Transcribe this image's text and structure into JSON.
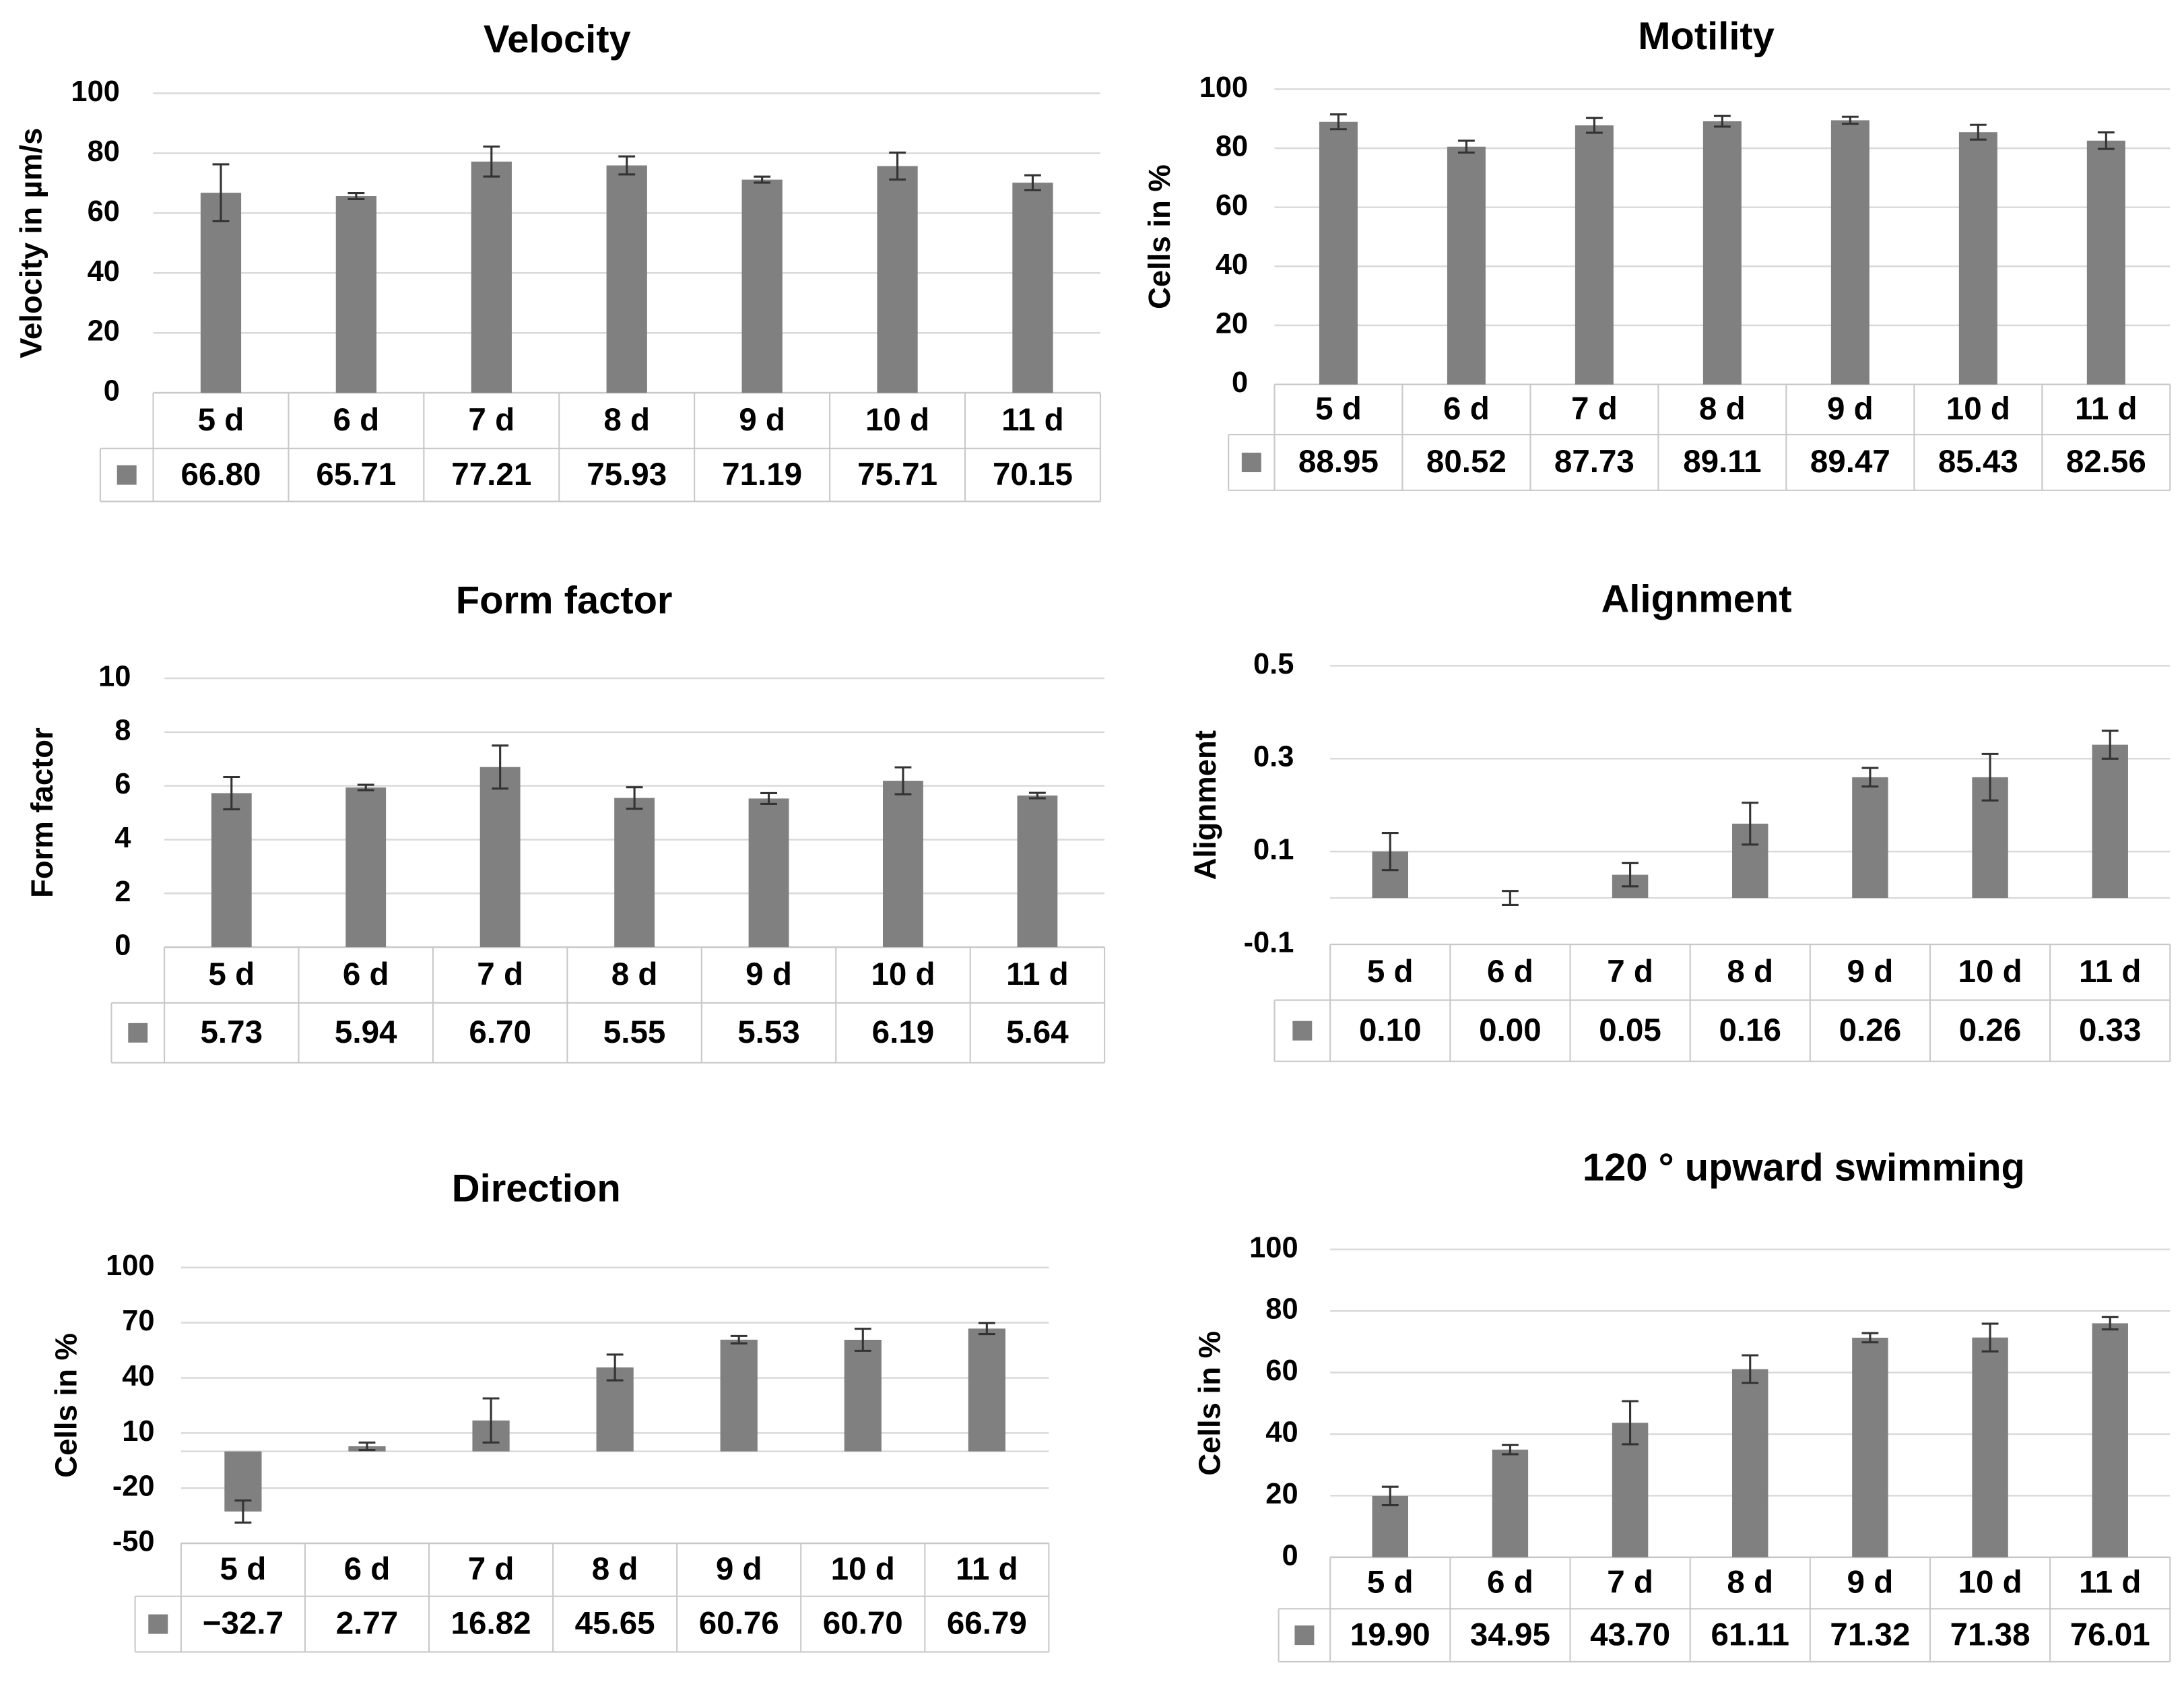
{
  "chart_data": [
    {
      "type": "bar",
      "title": "Velocity",
      "ylabel": "Velocity in µm/s",
      "categories": [
        "5 d",
        "6 d",
        "7 d",
        "8 d",
        "9 d",
        "10 d",
        "11 d"
      ],
      "values": [
        66.8,
        65.71,
        77.21,
        75.93,
        71.19,
        75.71,
        70.15
      ],
      "value_labels": [
        "66.80",
        "65.71",
        "77.21",
        "75.93",
        "71.19",
        "75.71",
        "70.15"
      ],
      "errors": [
        9.5,
        1,
        5,
        3,
        1,
        4.5,
        2.5
      ],
      "color": "#808080",
      "ylim": [
        0,
        100
      ],
      "yticks": [
        0,
        20,
        40,
        60,
        80,
        100
      ],
      "grid": true
    },
    {
      "type": "bar",
      "title": "Motility",
      "ylabel": "Cells in %",
      "categories": [
        "5 d",
        "6 d",
        "7 d",
        "8 d",
        "9 d",
        "10 d",
        "11 d"
      ],
      "values": [
        88.95,
        80.52,
        87.73,
        89.11,
        89.47,
        85.43,
        82.56
      ],
      "value_labels": [
        "88.95",
        "80.52",
        "87.73",
        "89.11",
        "89.47",
        "85.43",
        "82.56"
      ],
      "errors": [
        2.5,
        2,
        2.5,
        1.8,
        1.2,
        2.5,
        2.8
      ],
      "color": "#808080",
      "ylim": [
        0,
        100
      ],
      "yticks": [
        0,
        20,
        40,
        60,
        80,
        100
      ],
      "grid": true
    },
    {
      "type": "bar",
      "title": "Form factor",
      "ylabel": "Form factor",
      "categories": [
        "5 d",
        "6 d",
        "7 d",
        "8 d",
        "9 d",
        "10 d",
        "11 d"
      ],
      "values": [
        5.73,
        5.94,
        6.7,
        5.55,
        5.53,
        6.19,
        5.64
      ],
      "value_labels": [
        "5.73",
        "5.94",
        "6.70",
        "5.55",
        "5.53",
        "6.19",
        "5.64"
      ],
      "errors": [
        0.6,
        0.1,
        0.8,
        0.4,
        0.2,
        0.5,
        0.1
      ],
      "color": "#808080",
      "ylim": [
        0,
        10
      ],
      "yticks": [
        0,
        2,
        4,
        6,
        8,
        10
      ],
      "grid": true
    },
    {
      "type": "bar",
      "title": "Alignment",
      "ylabel": "Alignment",
      "categories": [
        "5 d",
        "6 d",
        "7 d",
        "8 d",
        "9 d",
        "10 d",
        "11 d"
      ],
      "values": [
        0.1,
        0.0,
        0.05,
        0.16,
        0.26,
        0.26,
        0.33
      ],
      "value_labels": [
        "0.10",
        "0.00",
        "0.05",
        "0.16",
        "0.26",
        "0.26",
        "0.33"
      ],
      "errors": [
        0.04,
        0.015,
        0.025,
        0.045,
        0.02,
        0.05,
        0.03
      ],
      "color": "#808080",
      "ylim": [
        -0.1,
        0.5
      ],
      "yticks": [
        -0.1,
        0.1,
        0.3,
        0.5
      ],
      "grid": true
    },
    {
      "type": "bar",
      "title": "Direction",
      "ylabel": "Cells in %",
      "categories": [
        "5 d",
        "6 d",
        "7 d",
        "8 d",
        "9 d",
        "10 d",
        "11 d"
      ],
      "values": [
        -32.7,
        2.77,
        16.82,
        45.65,
        60.76,
        60.7,
        66.79
      ],
      "value_labels": [
        "−32.7",
        "2.77",
        "16.82",
        "45.65",
        "60.76",
        "60.70",
        "66.79"
      ],
      "errors": [
        6,
        2,
        12,
        7,
        2,
        6,
        3
      ],
      "color": "#808080",
      "ylim": [
        -50,
        100
      ],
      "yticks": [
        -50,
        -20,
        10,
        40,
        70,
        100
      ],
      "grid": true
    },
    {
      "type": "bar",
      "title": "120 ° upward swimming",
      "ylabel": "Cells in %",
      "categories": [
        "5 d",
        "6 d",
        "7 d",
        "8 d",
        "9 d",
        "10 d",
        "11 d"
      ],
      "values": [
        19.9,
        34.95,
        43.7,
        61.11,
        71.32,
        71.38,
        76.01
      ],
      "value_labels": [
        "19.90",
        "34.95",
        "43.70",
        "61.11",
        "71.32",
        "71.38",
        "76.01"
      ],
      "errors": [
        3,
        1.5,
        7,
        4.5,
        1.5,
        4.5,
        2
      ],
      "color": "#808080",
      "ylim": [
        0,
        100
      ],
      "yticks": [
        0,
        20,
        40,
        60,
        80,
        100
      ],
      "grid": true
    }
  ]
}
